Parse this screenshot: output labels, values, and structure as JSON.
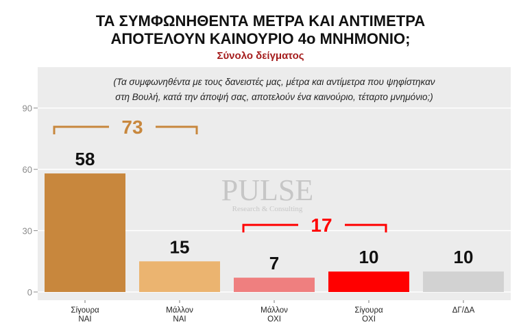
{
  "title_line1": "ΤΑ ΣΥΜΦΩΝΗΘΕΝΤΑ ΜΕΤΡΑ ΚΑΙ ΑΝΤΙΜΕΤΡΑ",
  "title_line2": "ΑΠΟΤΕΛΟΥΝ ΚΑΙΝΟΥΡΙΟ 4ο ΜΝΗΜΟΝΙΟ;",
  "subtitle": "Σύνολο δείγματος",
  "question_line1": "(Τα συμφωνηθέντα με τους δανειστές μας, μέτρα και αντίμετρα που ψηφίστηκαν",
  "question_line2": "στη Βουλή, κατά την άποψή σας, αποτελούν ένα καινούριο, τέταρτο μνημόνιο;)",
  "watermark": {
    "name": "PULSE",
    "tagline": "Research & Consulting"
  },
  "chart_data": {
    "type": "bar",
    "categories": [
      [
        "Σίγουρα",
        "ΝΑΙ"
      ],
      [
        "Μάλλον",
        "ΝΑΙ"
      ],
      [
        "Μάλλον",
        "ΟΧΙ"
      ],
      [
        "Σίγουρα",
        "ΟΧΙ"
      ],
      [
        "ΔΓ/ΔΑ"
      ]
    ],
    "values": [
      58,
      15,
      7,
      10,
      10
    ],
    "colors": [
      "#c8873d",
      "#ebb470",
      "#ef7f7f",
      "#ff0000",
      "#d2d2d2"
    ],
    "ylim": [
      0,
      110
    ],
    "yticks": [
      0,
      30,
      60,
      90
    ],
    "grid": true,
    "group_labels": [
      {
        "label": "73",
        "from": 0,
        "to": 1,
        "color": "#c8873d"
      },
      {
        "label": "17",
        "from": 2,
        "to": 3,
        "color": "#ff0000"
      }
    ]
  }
}
